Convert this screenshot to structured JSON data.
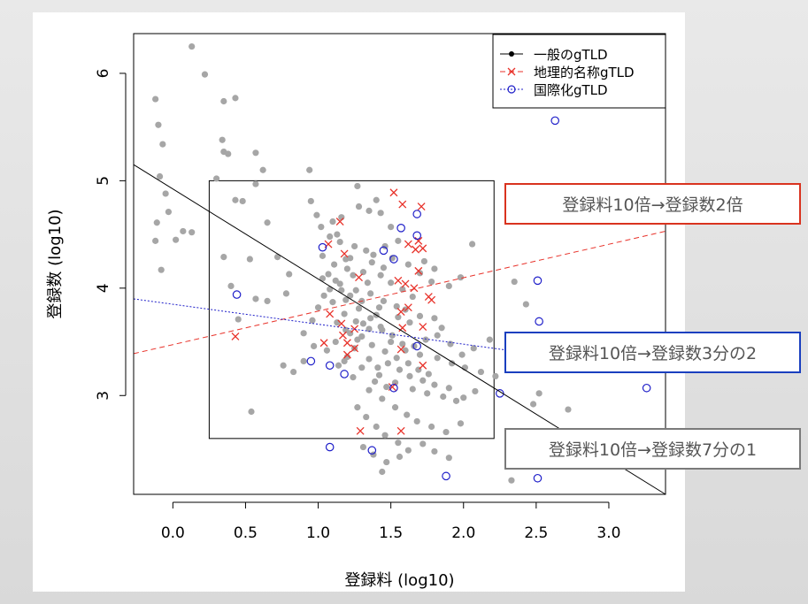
{
  "chart_data": {
    "type": "scatter",
    "xlabel": "登録料 (log10)",
    "ylabel": "登録数 (log10)",
    "xlim": [
      -0.27,
      3.39
    ],
    "ylim": [
      2.08,
      6.37
    ],
    "x_ticks": [
      "0.0",
      "0.5",
      "1.0",
      "1.5",
      "2.0",
      "2.5",
      "3.0"
    ],
    "y_ticks": [
      "3",
      "4",
      "5",
      "6"
    ],
    "legend": {
      "placement": "top-right",
      "entries": [
        {
          "label": "一般のgTLD",
          "color": "#000000",
          "style": "solid",
          "marker": "dot"
        },
        {
          "label": "地理的名称gTLD",
          "color": "#e8322a",
          "style": "dashed",
          "marker": "x"
        },
        {
          "label": "国際化gTLD",
          "color": "#1f1fc9",
          "style": "dotted",
          "marker": "circle"
        }
      ]
    },
    "highlight_box": {
      "x": [
        0.25,
        2.21
      ],
      "y": [
        2.6,
        5.0
      ]
    },
    "fit_lines": [
      {
        "series": "一般のgTLD",
        "color": "#000000",
        "dash": "",
        "points": [
          [
            -0.27,
            5.15
          ],
          [
            3.39,
            2.08
          ]
        ]
      },
      {
        "series": "地理的名称gTLD",
        "color": "#e8322a",
        "dash": "6,4",
        "points": [
          [
            -0.27,
            3.39
          ],
          [
            3.39,
            4.53
          ]
        ]
      },
      {
        "series": "国際化gTLD",
        "color": "#1f1fc9",
        "dash": "2,2",
        "points": [
          [
            -0.27,
            3.9
          ],
          [
            3.39,
            3.22
          ]
        ]
      }
    ],
    "series": [
      {
        "name": "一般のgTLD",
        "color": "#a6a6a6",
        "marker": "dot",
        "points": [
          [
            0.13,
            6.25
          ],
          [
            0.22,
            5.99
          ],
          [
            -0.12,
            5.76
          ],
          [
            -0.1,
            5.52
          ],
          [
            -0.07,
            5.34
          ],
          [
            -0.09,
            5.04
          ],
          [
            -0.05,
            4.88
          ],
          [
            -0.03,
            4.71
          ],
          [
            -0.11,
            4.61
          ],
          [
            -0.12,
            4.44
          ],
          [
            -0.08,
            4.17
          ],
          [
            0.02,
            4.45
          ],
          [
            0.07,
            4.53
          ],
          [
            0.13,
            4.52
          ],
          [
            0.3,
            5.02
          ],
          [
            0.35,
            5.27
          ],
          [
            0.34,
            5.38
          ],
          [
            0.38,
            5.25
          ],
          [
            0.43,
            5.77
          ],
          [
            0.35,
            5.74
          ],
          [
            0.43,
            4.82
          ],
          [
            0.48,
            4.81
          ],
          [
            0.57,
            5.26
          ],
          [
            0.62,
            5.1
          ],
          [
            0.57,
            4.97
          ],
          [
            0.65,
            4.61
          ],
          [
            0.72,
            4.29
          ],
          [
            0.8,
            4.13
          ],
          [
            0.53,
            4.27
          ],
          [
            0.35,
            4.29
          ],
          [
            0.4,
            4.02
          ],
          [
            0.45,
            3.71
          ],
          [
            0.57,
            3.9
          ],
          [
            0.65,
            3.88
          ],
          [
            0.78,
            3.95
          ],
          [
            0.94,
            5.1
          ],
          [
            0.95,
            4.81
          ],
          [
            0.99,
            4.68
          ],
          [
            1.1,
            4.62
          ],
          [
            1.13,
            4.5
          ],
          [
            1.16,
            4.66
          ],
          [
            1.28,
            4.76
          ],
          [
            1.35,
            4.72
          ],
          [
            1.43,
            4.7
          ],
          [
            1.46,
            4.39
          ],
          [
            1.5,
            4.57
          ],
          [
            1.55,
            4.44
          ],
          [
            1.27,
            4.95
          ],
          [
            1.4,
            4.82
          ],
          [
            1.33,
            4.35
          ],
          [
            1.22,
            4.28
          ],
          [
            1.31,
            4.15
          ],
          [
            1.19,
            4.27
          ],
          [
            1.07,
            4.13
          ],
          [
            1.03,
            4.09
          ],
          [
            1.15,
            4.04
          ],
          [
            1.26,
            3.98
          ],
          [
            1.36,
            3.95
          ],
          [
            1.45,
            3.88
          ],
          [
            1.54,
            3.83
          ],
          [
            1.6,
            3.8
          ],
          [
            1.7,
            3.74
          ],
          [
            1.8,
            3.72
          ],
          [
            1.85,
            3.63
          ],
          [
            1.4,
            3.75
          ],
          [
            1.31,
            3.67
          ],
          [
            1.22,
            3.58
          ],
          [
            1.12,
            3.5
          ],
          [
            1.06,
            3.42
          ],
          [
            1.18,
            3.32
          ],
          [
            1.3,
            3.26
          ],
          [
            1.42,
            3.19
          ],
          [
            1.53,
            3.12
          ],
          [
            1.65,
            3.06
          ],
          [
            1.75,
            3.02
          ],
          [
            1.86,
            2.99
          ],
          [
            1.95,
            2.95
          ],
          [
            1.44,
            3.61
          ],
          [
            1.5,
            3.5
          ],
          [
            1.6,
            3.42
          ],
          [
            1.7,
            3.38
          ],
          [
            1.82,
            3.35
          ],
          [
            1.92,
            3.3
          ],
          [
            2.01,
            3.26
          ],
          [
            2.12,
            3.22
          ],
          [
            2.22,
            3.18
          ],
          [
            1.3,
            3.55
          ],
          [
            1.25,
            3.44
          ],
          [
            1.2,
            3.36
          ],
          [
            1.14,
            3.28
          ],
          [
            0.97,
            3.46
          ],
          [
            0.9,
            3.32
          ],
          [
            0.83,
            3.22
          ],
          [
            0.76,
            3.28
          ],
          [
            0.9,
            3.58
          ],
          [
            0.96,
            3.7
          ],
          [
            1.0,
            3.82
          ],
          [
            1.04,
            3.93
          ],
          [
            1.08,
            3.99
          ],
          [
            1.12,
            4.07
          ],
          [
            1.19,
            3.89
          ],
          [
            1.28,
            3.81
          ],
          [
            1.36,
            3.72
          ],
          [
            1.43,
            3.64
          ],
          [
            1.51,
            3.56
          ],
          [
            1.58,
            3.48
          ],
          [
            1.66,
            3.46
          ],
          [
            1.74,
            3.52
          ],
          [
            1.82,
            3.56
          ],
          [
            1.91,
            3.48
          ],
          [
            1.99,
            3.38
          ],
          [
            2.07,
            3.44
          ],
          [
            2.18,
            3.52
          ],
          [
            1.62,
            4.22
          ],
          [
            1.7,
            4.14
          ],
          [
            1.78,
            4.06
          ],
          [
            1.9,
            4.02
          ],
          [
            1.98,
            4.1
          ],
          [
            1.43,
            4.12
          ],
          [
            1.5,
            4.05
          ],
          [
            1.58,
            3.99
          ],
          [
            1.65,
            3.92
          ],
          [
            1.34,
            4.05
          ],
          [
            1.24,
            4.12
          ],
          [
            1.1,
            3.87
          ],
          [
            1.18,
            3.76
          ],
          [
            1.26,
            3.69
          ],
          [
            1.35,
            3.62
          ],
          [
            1.48,
            3.3
          ],
          [
            1.56,
            3.24
          ],
          [
            1.63,
            3.18
          ],
          [
            1.72,
            3.14
          ],
          [
            1.8,
            3.1
          ],
          [
            1.9,
            3.07
          ],
          [
            2.0,
            2.98
          ],
          [
            2.08,
            3.04
          ],
          [
            1.35,
            3.05
          ],
          [
            1.44,
            2.97
          ],
          [
            1.53,
            2.89
          ],
          [
            1.61,
            2.82
          ],
          [
            1.68,
            2.76
          ],
          [
            1.78,
            2.71
          ],
          [
            1.88,
            2.66
          ],
          [
            1.98,
            2.74
          ],
          [
            1.27,
            2.89
          ],
          [
            1.33,
            2.8
          ],
          [
            1.4,
            2.71
          ],
          [
            1.46,
            2.63
          ],
          [
            1.55,
            2.56
          ],
          [
            1.62,
            2.49
          ],
          [
            1.72,
            2.55
          ],
          [
            1.8,
            2.48
          ],
          [
            1.9,
            2.42
          ],
          [
            1.31,
            2.52
          ],
          [
            1.38,
            2.45
          ],
          [
            1.47,
            2.38
          ],
          [
            1.56,
            2.43
          ],
          [
            1.44,
            2.29
          ],
          [
            0.54,
            2.85
          ],
          [
            2.33,
            2.21
          ],
          [
            2.52,
            3.02
          ],
          [
            2.48,
            2.92
          ],
          [
            2.72,
            2.87
          ],
          [
            2.43,
            3.85
          ],
          [
            2.35,
            4.06
          ],
          [
            2.06,
            4.41
          ],
          [
            1.73,
            4.25
          ],
          [
            1.8,
            4.18
          ],
          [
            1.02,
            4.57
          ],
          [
            1.08,
            4.48
          ],
          [
            1.15,
            4.43
          ],
          [
            1.25,
            4.39
          ],
          [
            1.38,
            4.31
          ],
          [
            1.51,
            4.28
          ],
          [
            1.03,
            4.3
          ],
          [
            1.11,
            4.22
          ],
          [
            1.2,
            4.18
          ],
          [
            1.37,
            4.24
          ],
          [
            1.45,
            4.19
          ],
          [
            1.16,
            3.98
          ],
          [
            1.22,
            3.93
          ],
          [
            1.3,
            3.88
          ],
          [
            1.42,
            3.82
          ],
          [
            1.55,
            3.73
          ],
          [
            1.63,
            3.68
          ],
          [
            1.13,
            3.68
          ],
          [
            1.19,
            3.61
          ],
          [
            1.27,
            3.52
          ],
          [
            1.37,
            3.47
          ],
          [
            1.46,
            3.41
          ],
          [
            1.54,
            3.35
          ],
          [
            1.62,
            3.3
          ],
          [
            1.69,
            3.24
          ],
          [
            1.76,
            3.2
          ],
          [
            1.35,
            3.34
          ],
          [
            1.41,
            3.26
          ],
          [
            1.24,
            3.17
          ],
          [
            1.39,
            3.13
          ],
          [
            1.47,
            3.08
          ]
        ]
      },
      {
        "name": "地理的名称gTLD",
        "color": "#e8322a",
        "marker": "x",
        "points": [
          [
            1.52,
            4.89
          ],
          [
            1.71,
            4.76
          ],
          [
            1.58,
            4.78
          ],
          [
            1.15,
            4.62
          ],
          [
            1.07,
            4.41
          ],
          [
            1.62,
            4.41
          ],
          [
            1.69,
            4.44
          ],
          [
            1.67,
            4.36
          ],
          [
            1.72,
            4.37
          ],
          [
            1.18,
            4.32
          ],
          [
            1.69,
            4.16
          ],
          [
            1.55,
            4.07
          ],
          [
            1.6,
            4.04
          ],
          [
            1.28,
            4.1
          ],
          [
            1.66,
            4.0
          ],
          [
            1.76,
            3.92
          ],
          [
            1.78,
            3.89
          ],
          [
            1.62,
            3.82
          ],
          [
            1.57,
            3.78
          ],
          [
            1.08,
            3.76
          ],
          [
            1.16,
            3.67
          ],
          [
            1.58,
            3.63
          ],
          [
            1.25,
            3.62
          ],
          [
            1.72,
            3.64
          ],
          [
            1.17,
            3.56
          ],
          [
            1.2,
            3.49
          ],
          [
            1.04,
            3.49
          ],
          [
            0.43,
            3.55
          ],
          [
            1.25,
            3.44
          ],
          [
            1.57,
            3.43
          ],
          [
            1.2,
            3.38
          ],
          [
            1.72,
            3.28
          ],
          [
            1.51,
            3.08
          ],
          [
            1.29,
            2.67
          ],
          [
            1.57,
            2.67
          ]
        ]
      },
      {
        "name": "国際化gTLD",
        "color": "#1f1fc9",
        "marker": "circle",
        "points": [
          [
            2.63,
            5.56
          ],
          [
            1.68,
            4.69
          ],
          [
            1.57,
            4.56
          ],
          [
            1.68,
            4.49
          ],
          [
            1.45,
            4.35
          ],
          [
            1.52,
            4.27
          ],
          [
            1.03,
            4.38
          ],
          [
            0.44,
            3.94
          ],
          [
            2.51,
            4.07
          ],
          [
            2.52,
            3.69
          ],
          [
            1.68,
            3.46
          ],
          [
            0.95,
            3.32
          ],
          [
            1.08,
            3.28
          ],
          [
            1.18,
            3.2
          ],
          [
            2.25,
            3.02
          ],
          [
            1.52,
            3.07
          ],
          [
            3.26,
            3.07
          ],
          [
            1.08,
            2.52
          ],
          [
            1.37,
            2.49
          ],
          [
            1.88,
            2.25
          ],
          [
            2.51,
            2.23
          ]
        ]
      }
    ]
  },
  "callouts": {
    "red": "登録料10倍→登録数2倍",
    "blue": "登録料10倍→登録数3分の2",
    "gray": "登録料10倍→登録数7分の1"
  }
}
